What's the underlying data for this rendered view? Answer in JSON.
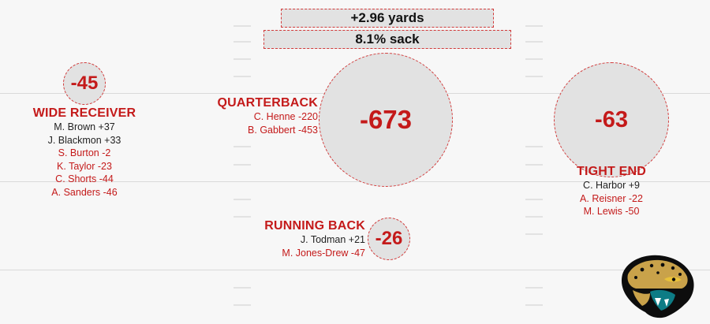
{
  "summary": {
    "yards": "+2.96 yards",
    "sack": "8.1% sack"
  },
  "positions": {
    "wide_receiver": {
      "title": "WIDE RECEIVER",
      "total": "-45",
      "players": [
        {
          "text": "M. Brown +37",
          "sign": "pos"
        },
        {
          "text": "J. Blackmon +33",
          "sign": "pos"
        },
        {
          "text": "S. Burton -2",
          "sign": "neg"
        },
        {
          "text": "K. Taylor -23",
          "sign": "neg"
        },
        {
          "text": "C. Shorts -44",
          "sign": "neg"
        },
        {
          "text": "A. Sanders -46",
          "sign": "neg"
        }
      ]
    },
    "quarterback": {
      "title": "QUARTERBACK",
      "total": "-673",
      "players": [
        {
          "text": "C. Henne -220",
          "sign": "neg"
        },
        {
          "text": "B. Gabbert -453",
          "sign": "neg"
        }
      ]
    },
    "tight_end": {
      "title": "TIGHT END",
      "total": "-63",
      "players": [
        {
          "text": "C. Harbor +9",
          "sign": "pos"
        },
        {
          "text": "A. Reisner -22",
          "sign": "neg"
        },
        {
          "text": "M. Lewis -50",
          "sign": "neg"
        }
      ]
    },
    "running_back": {
      "title": "RUNNING BACK",
      "total": "-26",
      "players": [
        {
          "text": "J. Todman +21",
          "sign": "pos"
        },
        {
          "text": "M. Jones-Drew -47",
          "sign": "neg"
        }
      ]
    }
  },
  "colors": {
    "accent_red": "#c41a1a",
    "bubble_fill": "#e2e2e2",
    "text_dark": "#222222"
  },
  "icons": {
    "team_logo": "jaguar-head-logo"
  }
}
